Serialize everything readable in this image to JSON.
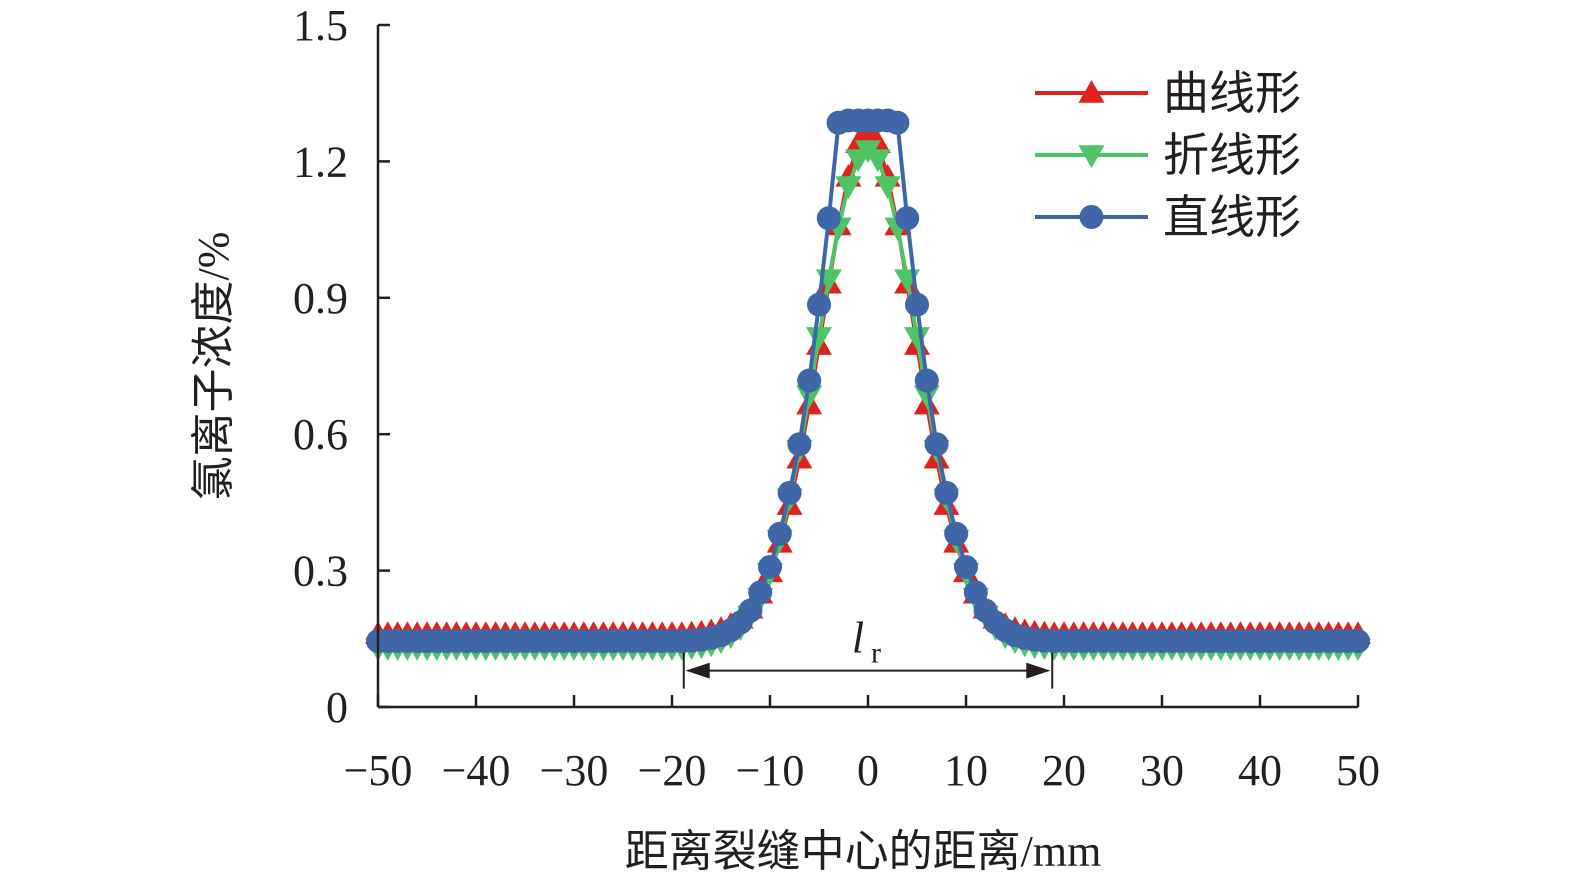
{
  "chart_data": {
    "type": "line",
    "xlabel": "距离裂缝中心的距离/mm",
    "ylabel": "氯离子浓度/%",
    "xlim": [
      -50,
      50
    ],
    "ylim": [
      0,
      1.5
    ],
    "xticks": [
      "−50",
      "−40",
      "−30",
      "−20",
      "−10",
      "0",
      "10",
      "20",
      "30",
      "40",
      "50"
    ],
    "yticks": [
      "0",
      "0.3",
      "0.6",
      "0.9",
      "1.2",
      "1.5"
    ],
    "grid": false,
    "legend_position": "top-right",
    "annotation": {
      "label": "l",
      "subscript": "r",
      "from_x": -18.8,
      "to_x": 18.8,
      "y": 0.08
    },
    "series": [
      {
        "name": "曲线形",
        "marker": "triangle-up",
        "color": "#e0221f",
        "x": [
          -50,
          -49,
          -48,
          -47,
          -46,
          -45,
          -44,
          -43,
          -42,
          -41,
          -40,
          -39,
          -38,
          -37,
          -36,
          -35,
          -34,
          -33,
          -32,
          -31,
          -30,
          -29,
          -28,
          -27,
          -26,
          -25,
          -24,
          -23,
          -22,
          -21,
          -20,
          -19,
          -18,
          -17,
          -16,
          -15,
          -14,
          -13,
          -12,
          -11,
          -10,
          -9,
          -8,
          -7,
          -6,
          -5,
          -4,
          -3,
          -2,
          -1,
          0,
          1,
          2,
          3,
          4,
          5,
          6,
          7,
          8,
          9,
          10,
          11,
          12,
          13,
          14,
          15,
          16,
          17,
          18,
          19,
          20,
          21,
          22,
          23,
          24,
          25,
          26,
          27,
          28,
          29,
          30,
          31,
          32,
          33,
          34,
          35,
          36,
          37,
          38,
          39,
          40,
          41,
          42,
          43,
          44,
          45,
          46,
          47,
          48,
          49,
          50
        ],
        "y": [
          0.16,
          0.16,
          0.16,
          0.16,
          0.16,
          0.16,
          0.16,
          0.16,
          0.16,
          0.16,
          0.16,
          0.16,
          0.16,
          0.16,
          0.16,
          0.16,
          0.16,
          0.16,
          0.16,
          0.16,
          0.16,
          0.16,
          0.16,
          0.16,
          0.16,
          0.16,
          0.16,
          0.16,
          0.16,
          0.16,
          0.16,
          0.16,
          0.161,
          0.163,
          0.166,
          0.171,
          0.18,
          0.194,
          0.216,
          0.249,
          0.296,
          0.361,
          0.444,
          0.546,
          0.665,
          0.796,
          0.931,
          1.059,
          1.166,
          1.24,
          1.267,
          1.24,
          1.166,
          1.059,
          0.931,
          0.796,
          0.665,
          0.546,
          0.444,
          0.361,
          0.296,
          0.249,
          0.216,
          0.194,
          0.18,
          0.171,
          0.166,
          0.163,
          0.161,
          0.16,
          0.16,
          0.16,
          0.16,
          0.16,
          0.16,
          0.16,
          0.16,
          0.16,
          0.16,
          0.16,
          0.16,
          0.16,
          0.16,
          0.16,
          0.16,
          0.16,
          0.16,
          0.16,
          0.16,
          0.16,
          0.16,
          0.16,
          0.16,
          0.16,
          0.16,
          0.16,
          0.16,
          0.16,
          0.16,
          0.16,
          0.16
        ]
      },
      {
        "name": "折线形",
        "marker": "triangle-down",
        "color": "#4fc466",
        "x": [
          -50,
          -49,
          -48,
          -47,
          -46,
          -45,
          -44,
          -43,
          -42,
          -41,
          -40,
          -39,
          -38,
          -37,
          -36,
          -35,
          -34,
          -33,
          -32,
          -31,
          -30,
          -29,
          -28,
          -27,
          -26,
          -25,
          -24,
          -23,
          -22,
          -21,
          -20,
          -19,
          -18,
          -17,
          -16,
          -15,
          -14,
          -13,
          -12,
          -11,
          -10,
          -9,
          -8,
          -7,
          -6,
          -5,
          -4,
          -3,
          -2,
          -1,
          0,
          1,
          2,
          3,
          4,
          5,
          6,
          7,
          8,
          9,
          10,
          11,
          12,
          13,
          14,
          15,
          16,
          17,
          18,
          19,
          20,
          21,
          22,
          23,
          24,
          25,
          26,
          27,
          28,
          29,
          30,
          31,
          32,
          33,
          34,
          35,
          36,
          37,
          38,
          39,
          40,
          41,
          42,
          43,
          44,
          45,
          46,
          47,
          48,
          49,
          50
        ],
        "y": [
          0.13,
          0.13,
          0.13,
          0.13,
          0.13,
          0.13,
          0.13,
          0.13,
          0.13,
          0.13,
          0.13,
          0.13,
          0.13,
          0.13,
          0.13,
          0.13,
          0.13,
          0.13,
          0.13,
          0.13,
          0.13,
          0.13,
          0.13,
          0.13,
          0.13,
          0.13,
          0.13,
          0.13,
          0.13,
          0.13,
          0.13,
          0.131,
          0.132,
          0.134,
          0.138,
          0.145,
          0.156,
          0.174,
          0.201,
          0.24,
          0.295,
          0.368,
          0.459,
          0.566,
          0.686,
          0.814,
          0.941,
          1.055,
          1.146,
          1.205,
          1.225,
          1.205,
          1.146,
          1.055,
          0.941,
          0.814,
          0.686,
          0.566,
          0.459,
          0.368,
          0.295,
          0.24,
          0.201,
          0.174,
          0.156,
          0.145,
          0.138,
          0.134,
          0.132,
          0.131,
          0.13,
          0.13,
          0.13,
          0.13,
          0.13,
          0.13,
          0.13,
          0.13,
          0.13,
          0.13,
          0.13,
          0.13,
          0.13,
          0.13,
          0.13,
          0.13,
          0.13,
          0.13,
          0.13,
          0.13,
          0.13,
          0.13,
          0.13,
          0.13,
          0.13,
          0.13,
          0.13,
          0.13,
          0.13,
          0.13,
          0.13
        ]
      },
      {
        "name": "直线形",
        "marker": "circle",
        "color": "#3f66a6",
        "x": [
          -50,
          -49,
          -48,
          -47,
          -46,
          -45,
          -44,
          -43,
          -42,
          -41,
          -40,
          -39,
          -38,
          -37,
          -36,
          -35,
          -34,
          -33,
          -32,
          -31,
          -30,
          -29,
          -28,
          -27,
          -26,
          -25,
          -24,
          -23,
          -22,
          -21,
          -20,
          -19,
          -18,
          -17,
          -16,
          -15,
          -14,
          -13,
          -12,
          -11,
          -10,
          -9,
          -8,
          -7,
          -6,
          -5,
          -4,
          -3,
          -2,
          -1,
          0,
          1,
          2,
          3,
          4,
          5,
          6,
          7,
          8,
          9,
          10,
          11,
          12,
          13,
          14,
          15,
          16,
          17,
          18,
          19,
          20,
          21,
          22,
          23,
          24,
          25,
          26,
          27,
          28,
          29,
          30,
          31,
          32,
          33,
          34,
          35,
          36,
          37,
          38,
          39,
          40,
          41,
          42,
          43,
          44,
          45,
          46,
          47,
          48,
          49,
          50
        ],
        "y": [
          0.145,
          0.145,
          0.145,
          0.145,
          0.145,
          0.145,
          0.145,
          0.145,
          0.145,
          0.145,
          0.145,
          0.145,
          0.145,
          0.145,
          0.145,
          0.145,
          0.145,
          0.145,
          0.145,
          0.145,
          0.145,
          0.145,
          0.145,
          0.145,
          0.145,
          0.145,
          0.145,
          0.145,
          0.145,
          0.145,
          0.145,
          0.145,
          0.146,
          0.148,
          0.152,
          0.158,
          0.169,
          0.186,
          0.212,
          0.252,
          0.308,
          0.381,
          0.471,
          0.578,
          0.718,
          0.885,
          1.075,
          1.285,
          1.29,
          1.29,
          1.29,
          1.29,
          1.29,
          1.285,
          1.075,
          0.885,
          0.718,
          0.578,
          0.471,
          0.381,
          0.308,
          0.252,
          0.212,
          0.186,
          0.169,
          0.158,
          0.152,
          0.148,
          0.146,
          0.145,
          0.145,
          0.145,
          0.145,
          0.145,
          0.145,
          0.145,
          0.145,
          0.145,
          0.145,
          0.145,
          0.145,
          0.145,
          0.145,
          0.145,
          0.145,
          0.145,
          0.145,
          0.145,
          0.145,
          0.145,
          0.145,
          0.145,
          0.145,
          0.145,
          0.145,
          0.145,
          0.145,
          0.145,
          0.145,
          0.145,
          0.145
        ]
      }
    ]
  }
}
